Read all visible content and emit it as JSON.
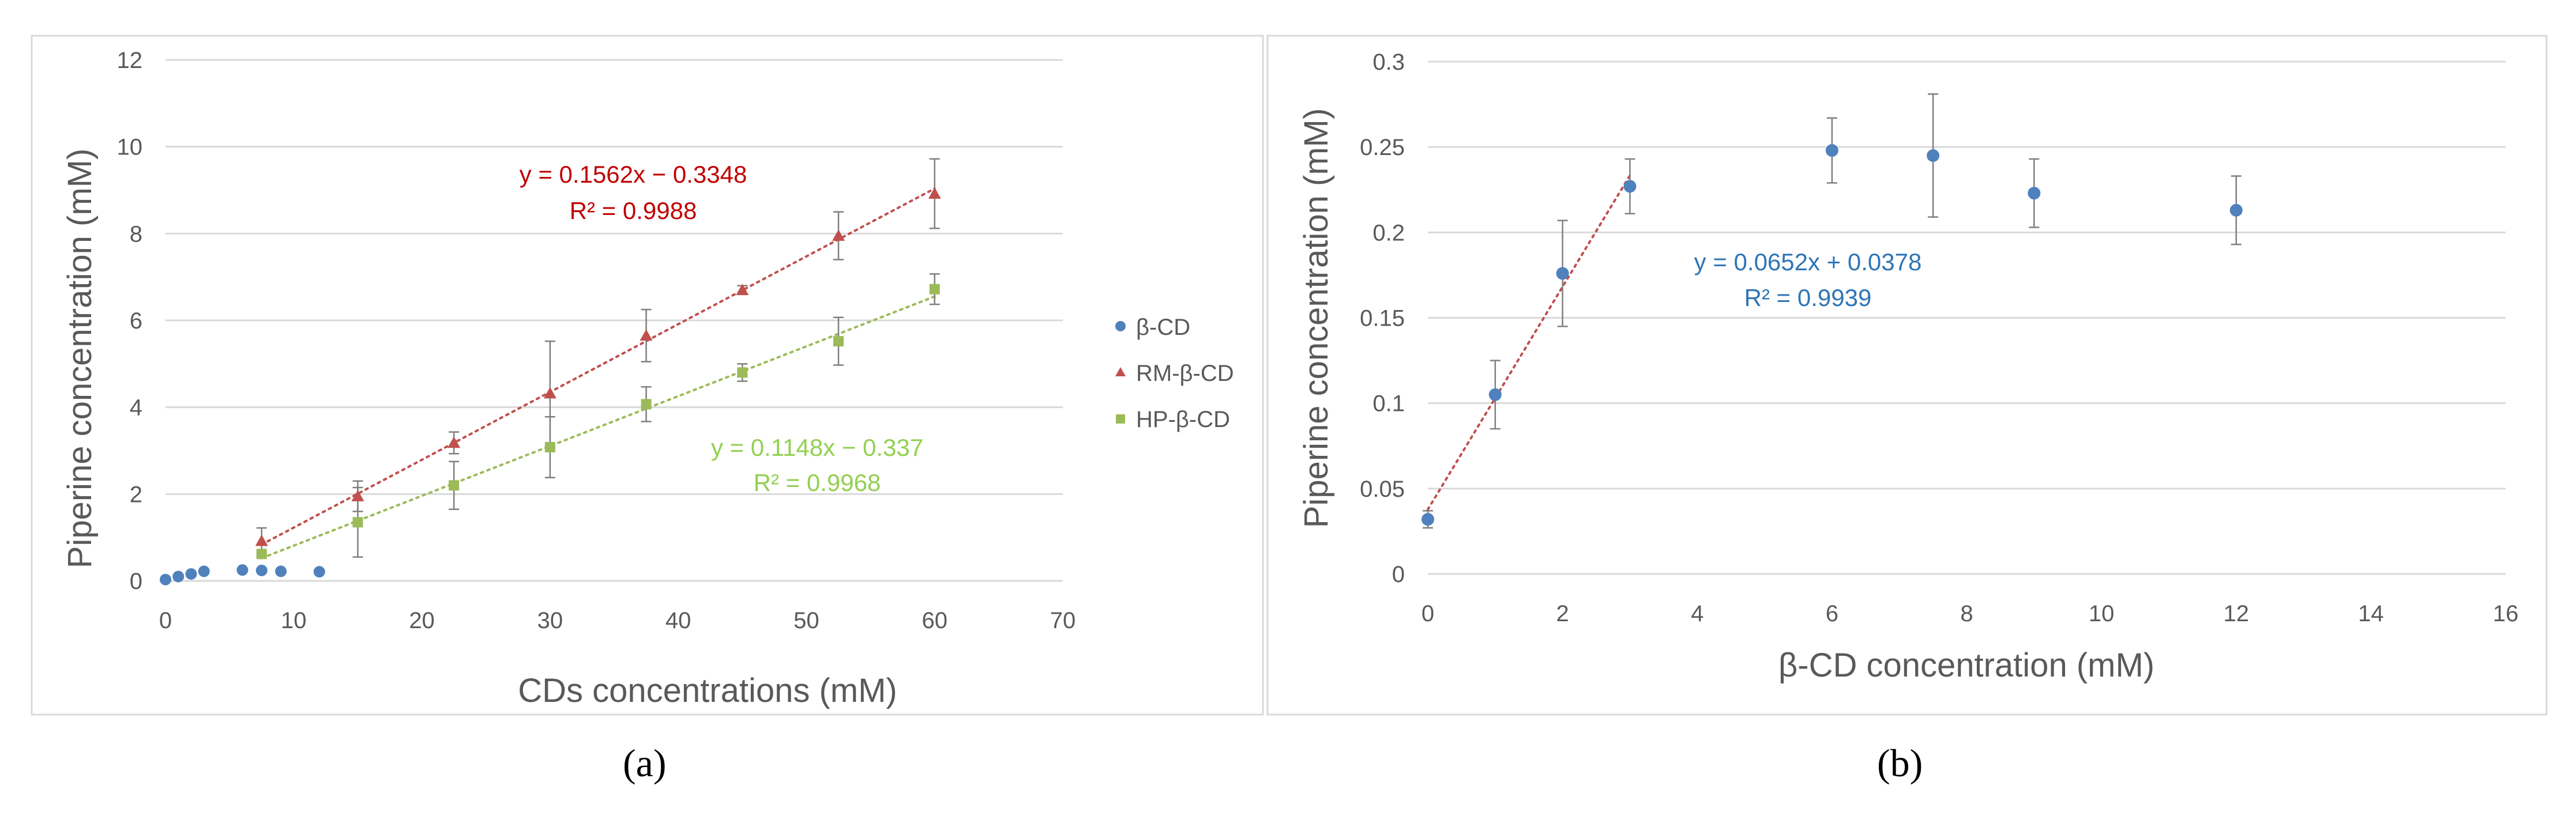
{
  "panel_labels": {
    "a": "(a)",
    "b": "(b)"
  },
  "colors": {
    "beta": "#4f81bd",
    "rm": "#c0504d",
    "hp": "#9bbb59",
    "eq_rm": "#c00000",
    "eq_hp": "#92d050",
    "eq_b": "#2e75b6",
    "axis_text": "#595959",
    "grid": "#d9d9d9",
    "errbar": "#7f7f7f"
  },
  "chart_data": [
    {
      "id": "a",
      "type": "scatter",
      "title": "",
      "xlabel": "CDs concentrations (mM)",
      "ylabel": "Piperine concentration (mM)",
      "xlim": [
        0,
        70
      ],
      "ylim": [
        0,
        12
      ],
      "xticks": [
        "0",
        "10",
        "20",
        "30",
        "40",
        "50",
        "60",
        "70"
      ],
      "yticks": [
        "0",
        "2",
        "4",
        "6",
        "8",
        "10",
        "12"
      ],
      "grid": true,
      "legend": "right",
      "series": [
        {
          "name": "β-CD",
          "marker": "circle",
          "color": "#4f81bd",
          "points": [
            [
              0,
              0.03
            ],
            [
              1,
              0.1
            ],
            [
              2,
              0.16
            ],
            [
              3,
              0.22
            ],
            [
              6,
              0.25
            ],
            [
              7.5,
              0.24
            ],
            [
              9,
              0.22
            ],
            [
              12,
              0.21
            ]
          ],
          "errors": [
            0,
            0,
            0,
            0,
            0,
            0,
            0,
            0
          ]
        },
        {
          "name": "RM-β-CD",
          "marker": "triangle",
          "color": "#c0504d",
          "points": [
            [
              7.5,
              0.92
            ],
            [
              15,
              1.95
            ],
            [
              22.5,
              3.18
            ],
            [
              30,
              4.32
            ],
            [
              37.5,
              5.65
            ],
            [
              45,
              6.7
            ],
            [
              52.5,
              7.95
            ],
            [
              60,
              8.92
            ]
          ],
          "errors": [
            0.3,
            0.35,
            0.25,
            1.2,
            0.6,
            0.1,
            0.55,
            0.8
          ],
          "trend": {
            "slope": 0.1562,
            "intercept": -0.3348,
            "x_range": [
              7.5,
              60
            ],
            "equation": "y = 0.1562x − 0.3348",
            "r2": "R² = 0.9988"
          }
        },
        {
          "name": "HP-β-CD",
          "marker": "square",
          "color": "#9bbb59",
          "points": [
            [
              7.5,
              0.62
            ],
            [
              15,
              1.35
            ],
            [
              22.5,
              2.2
            ],
            [
              30,
              3.08
            ],
            [
              37.5,
              4.07
            ],
            [
              45,
              4.8
            ],
            [
              52.5,
              5.52
            ],
            [
              60,
              6.72
            ]
          ],
          "errors": [
            0.05,
            0.8,
            0.55,
            0.7,
            0.4,
            0.2,
            0.55,
            0.35
          ],
          "trend": {
            "slope": 0.1148,
            "intercept": -0.337,
            "x_range": [
              7.5,
              60
            ],
            "equation": "y = 0.1148x − 0.337",
            "r2": "R² = 0.9968"
          }
        }
      ]
    },
    {
      "id": "b",
      "type": "scatter",
      "title": "",
      "xlabel": "β-CD concentration (mM)",
      "ylabel": "Piperine concentration (mM)",
      "xlim": [
        0,
        16
      ],
      "ylim": [
        0,
        0.3
      ],
      "xticks": [
        "0",
        "2",
        "4",
        "6",
        "8",
        "10",
        "12",
        "14",
        "16"
      ],
      "yticks": [
        "0",
        "0.05",
        "0.1",
        "0.15",
        "0.2",
        "0.25",
        "0.3"
      ],
      "grid": true,
      "legend": "none",
      "series": [
        {
          "name": "β-CD",
          "marker": "circle",
          "color": "#4f81bd",
          "points": [
            [
              0,
              0.032
            ],
            [
              1,
              0.105
            ],
            [
              2,
              0.176
            ],
            [
              3,
              0.227
            ],
            [
              6,
              0.248
            ],
            [
              7.5,
              0.245
            ],
            [
              9,
              0.223
            ],
            [
              12,
              0.213
            ]
          ],
          "errors": [
            0.005,
            0.02,
            0.031,
            0.016,
            0.019,
            0.036,
            0.02,
            0.02
          ],
          "trend": {
            "slope": 0.0652,
            "intercept": 0.0378,
            "x_range": [
              0,
              3
            ],
            "equation": "y = 0.0652x + 0.0378",
            "r2": "R² = 0.9939"
          }
        }
      ]
    }
  ]
}
